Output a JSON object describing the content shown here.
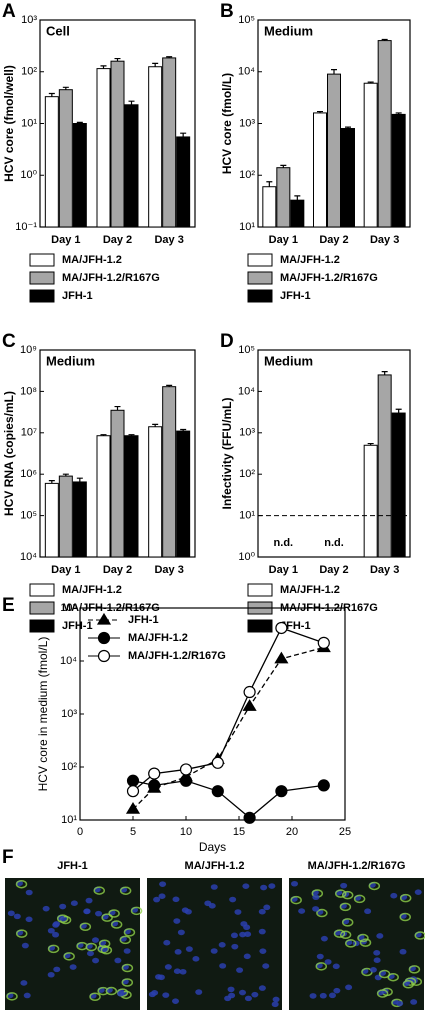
{
  "chart_data": [
    {
      "type": "bar",
      "panel_label": "A",
      "title": "Cell",
      "y_label": "HCV core (fmol/well)",
      "log_scale": true,
      "categories": [
        "Day 1",
        "Day 2",
        "Day 3"
      ],
      "ylim": [
        0.1,
        1000
      ],
      "yticks": [
        {
          "value": 0.1,
          "label": "10⁻¹"
        },
        {
          "value": 1,
          "label": "10⁰"
        },
        {
          "value": 10,
          "label": "10¹"
        },
        {
          "value": 100,
          "label": "10²"
        },
        {
          "value": 1000,
          "label": "10³"
        }
      ],
      "series": [
        {
          "name": "MA/JFH-1.2",
          "color": "#ffffff",
          "values": [
            33,
            115,
            125
          ],
          "errors": [
            5,
            15,
            20
          ]
        },
        {
          "name": "MA/JFH-1.2/R167G",
          "color": "#a6a6a6",
          "values": [
            45,
            160,
            185
          ],
          "errors": [
            5,
            20,
            10
          ]
        },
        {
          "name": "JFH-1",
          "color": "#000000",
          "values": [
            10,
            23,
            5.5
          ],
          "errors": [
            0.5,
            4,
            1
          ]
        }
      ]
    },
    {
      "type": "bar",
      "panel_label": "B",
      "title": "Medium",
      "y_label": "HCV core (fmol/L)",
      "log_scale": true,
      "categories": [
        "Day 1",
        "Day 2",
        "Day 3"
      ],
      "ylim": [
        10,
        100000
      ],
      "yticks": [
        {
          "value": 10,
          "label": "10¹"
        },
        {
          "value": 100,
          "label": "10²"
        },
        {
          "value": 1000,
          "label": "10³"
        },
        {
          "value": 10000,
          "label": "10⁴"
        },
        {
          "value": 100000,
          "label": "10⁵"
        }
      ],
      "series": [
        {
          "name": "MA/JFH-1.2",
          "color": "#ffffff",
          "values": [
            60,
            1600,
            6000
          ],
          "errors": [
            15,
            100,
            300
          ]
        },
        {
          "name": "MA/JFH-1.2/R167G",
          "color": "#a6a6a6",
          "values": [
            140,
            9000,
            40000
          ],
          "errors": [
            15,
            2000,
            2000
          ]
        },
        {
          "name": "JFH-1",
          "color": "#000000",
          "values": [
            33,
            800,
            1500
          ],
          "errors": [
            7,
            50,
            100
          ]
        }
      ]
    },
    {
      "type": "bar",
      "panel_label": "C",
      "title": "Medium",
      "y_label": "HCV RNA (copies/mL)",
      "log_scale": true,
      "categories": [
        "Day 1",
        "Day 2",
        "Day 3"
      ],
      "ylim": [
        10000,
        1000000000
      ],
      "yticks": [
        {
          "value": 10000,
          "label": "10⁴"
        },
        {
          "value": 100000,
          "label": "10⁵"
        },
        {
          "value": 1000000,
          "label": "10⁶"
        },
        {
          "value": 10000000,
          "label": "10⁷"
        },
        {
          "value": 100000000,
          "label": "10⁸"
        },
        {
          "value": 1000000000,
          "label": "10⁹"
        }
      ],
      "series": [
        {
          "name": "MA/JFH-1.2",
          "color": "#ffffff",
          "values": [
            600000,
            8500000,
            14000000
          ],
          "errors": [
            100000,
            500000,
            2000000
          ]
        },
        {
          "name": "MA/JFH-1.2/R167G",
          "color": "#a6a6a6",
          "values": [
            900000,
            35000000,
            130000000
          ],
          "errors": [
            100000,
            8000000,
            10000000
          ]
        },
        {
          "name": "JFH-1",
          "color": "#000000",
          "values": [
            650000,
            8500000,
            11000000
          ],
          "errors": [
            150000,
            500000,
            1000000
          ]
        }
      ]
    },
    {
      "type": "bar",
      "panel_label": "D",
      "title": "Medium",
      "y_label": "Infectivity (FFU/mL)",
      "log_scale": true,
      "categories": [
        "Day 1",
        "Day 2",
        "Day 3"
      ],
      "category_notes": [
        "n.d.",
        "n.d.",
        null
      ],
      "threshold": 10,
      "ylim": [
        1,
        100000
      ],
      "yticks": [
        {
          "value": 1,
          "label": "10⁰"
        },
        {
          "value": 10,
          "label": "10¹"
        },
        {
          "value": 100,
          "label": "10²"
        },
        {
          "value": 1000,
          "label": "10³"
        },
        {
          "value": 10000,
          "label": "10⁴"
        },
        {
          "value": 100000,
          "label": "10⁵"
        }
      ],
      "series": [
        {
          "name": "MA/JFH-1.2",
          "color": "#ffffff",
          "values": [
            null,
            null,
            500
          ],
          "errors": [
            null,
            null,
            50
          ]
        },
        {
          "name": "MA/JFH-1.2/R167G",
          "color": "#a6a6a6",
          "values": [
            null,
            null,
            25000
          ],
          "errors": [
            null,
            null,
            5000
          ]
        },
        {
          "name": "JFH-1",
          "color": "#000000",
          "values": [
            null,
            null,
            3000
          ],
          "errors": [
            null,
            null,
            700
          ]
        }
      ]
    },
    {
      "type": "line",
      "panel_label": "E",
      "x_label": "Days",
      "y_label": "HCV core in medium (fmol/L)",
      "log_scale": true,
      "x": [
        5,
        7,
        10,
        13,
        16,
        19,
        23
      ],
      "xlim": [
        0,
        25
      ],
      "xticks": [
        0,
        5,
        10,
        15,
        20,
        25
      ],
      "ylim": [
        10,
        100000
      ],
      "yticks": [
        {
          "value": 10,
          "label": "10¹"
        },
        {
          "value": 100,
          "label": "10²"
        },
        {
          "value": 1000,
          "label": "10³"
        },
        {
          "value": 10000,
          "label": "10⁴"
        },
        {
          "value": 100000,
          "label": "10⁵"
        }
      ],
      "series": [
        {
          "name": "JFH-1",
          "color": "#000000",
          "marker": "triangle",
          "marker_fill": "#000000",
          "line_style": "dashed",
          "values": [
            16,
            40,
            65,
            140,
            1400,
            11000,
            18000
          ]
        },
        {
          "name": "MA/JFH-1.2",
          "color": "#000000",
          "marker": "circle",
          "marker_fill": "#000000",
          "line_style": "solid",
          "values": [
            55,
            45,
            55,
            35,
            11,
            35,
            45
          ]
        },
        {
          "name": "MA/JFH-1.2/R167G",
          "color": "#000000",
          "marker": "circle",
          "marker_fill": "#ffffff",
          "line_style": "solid",
          "values": [
            35,
            75,
            90,
            120,
            2600,
            42000,
            22000
          ]
        }
      ]
    }
  ],
  "panel_f": {
    "panel_label": "F",
    "images": [
      {
        "label": "JFH-1"
      },
      {
        "label": "MA/JFH-1.2"
      },
      {
        "label": "MA/JFH-1.2/R167G"
      }
    ]
  }
}
